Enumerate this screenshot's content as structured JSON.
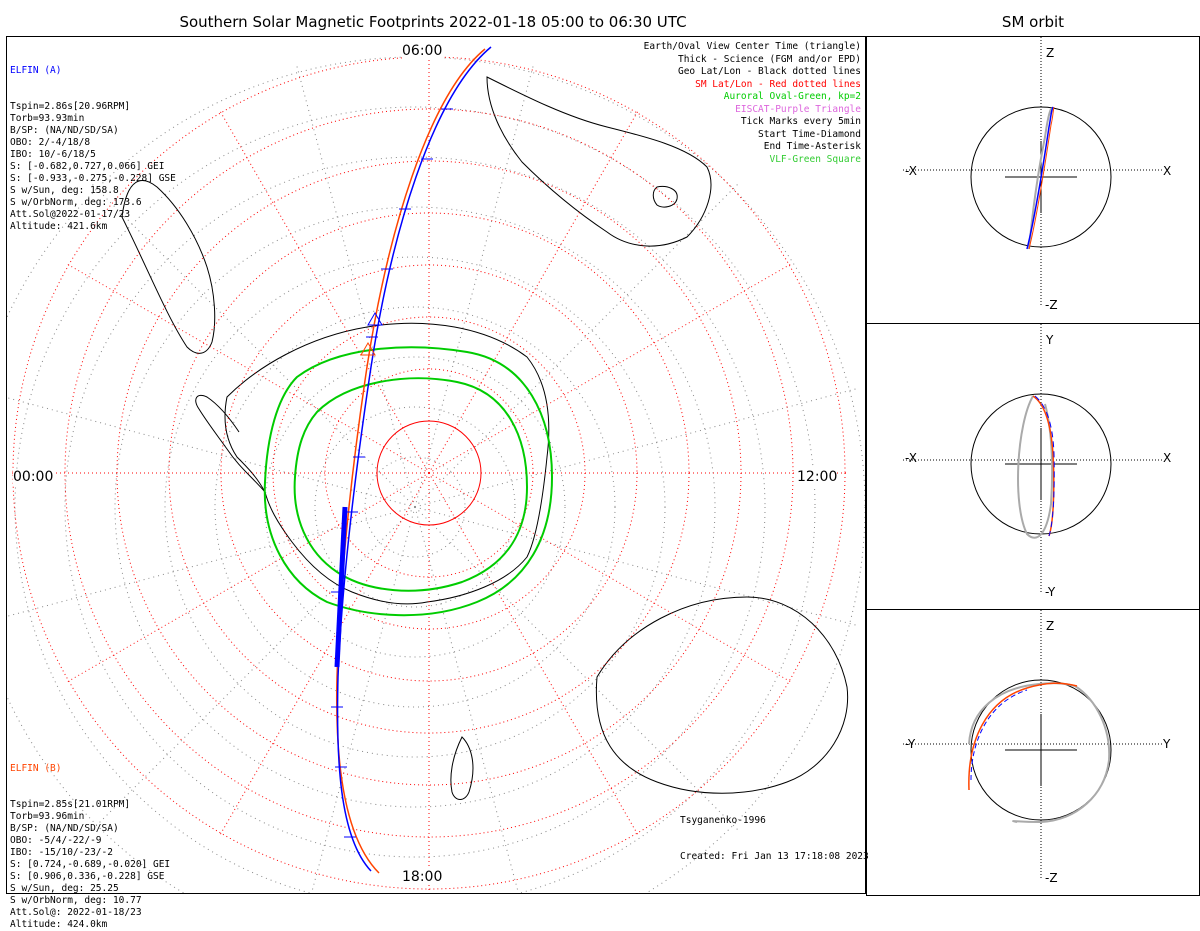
{
  "title": "Southern Solar Magnetic Footprints 2022-01-18 05:00 to 06:30 UTC",
  "orbit_title": "SM orbit",
  "time_labels": {
    "top": "06:00",
    "left": "00:00",
    "right": "12:00",
    "bottom": "18:00"
  },
  "legend": [
    {
      "text": "Earth/Oval View Center Time (triangle)",
      "color": "#000000"
    },
    {
      "text": "Thick - Science (FGM and/or EPD)",
      "color": "#000000"
    },
    {
      "text": "Geo Lat/Lon - Black dotted lines",
      "color": "#000000"
    },
    {
      "text": "SM Lat/Lon - Red dotted lines",
      "color": "#ff0000"
    },
    {
      "text": "Auroral Oval-Green, kp=2",
      "color": "#00cc00"
    },
    {
      "text": "EISCAT-Purple Triangle",
      "color": "#dd66dd"
    },
    {
      "text": "Tick Marks every 5min",
      "color": "#000000"
    },
    {
      "text": "Start Time-Diamond",
      "color": "#000000"
    },
    {
      "text": "End Time-Asterisk",
      "color": "#000000"
    },
    {
      "text": "VLF-Green Square",
      "color": "#33cc33"
    }
  ],
  "elfin_a": {
    "name": "ELFIN (A)",
    "color": "#0000ff",
    "lines": [
      "Tspin=2.86s[20.96RPM]",
      "Torb=93.93min",
      "B/SP: (NA/ND/SD/SA)",
      "OBO: 2/-4/18/8",
      "IBO: 10/-6/18/5",
      "S: [-0.682,0.727,0.066] GEI",
      "S: [-0.933,-0.275,-0.228] GSE",
      "S w/Sun, deg: 158.8",
      "S w/OrbNorm, deg: 173.6",
      "Att.Sol@2022-01-17/23",
      "Altitude: 421.6km"
    ]
  },
  "elfin_b": {
    "name": "ELFIN (B)",
    "color": "#ff4400",
    "lines": [
      "Tspin=2.85s[21.01RPM]",
      "Torb=93.96min",
      "B/SP: (NA/ND/SD/SA)",
      "OBO: -5/4/-22/-9",
      "IBO: -15/10/-23/-2",
      "S: [0.724,-0.689,-0.020] GEI",
      "S: [0.906,0.336,-0.228] GSE",
      "S w/Sun, deg: 25.25",
      "S w/OrbNorm, deg: 10.77",
      "Att.Sol@: 2022-01-18/23",
      "Altitude: 424.0km"
    ]
  },
  "credits": [
    "Tsyganenko-1996",
    "Created: Fri Jan 13 17:18:08 2023"
  ],
  "orbit_panels": [
    {
      "name": "xz",
      "top": "Z",
      "bottom": "-Z",
      "left": "-X",
      "right": "X"
    },
    {
      "name": "xy",
      "top": "Y",
      "bottom": "-Y",
      "left": "-X",
      "right": "X"
    },
    {
      "name": "yz",
      "top": "Z",
      "bottom": "-Z",
      "left": "-Y",
      "right": "Y"
    }
  ],
  "chart_data": {
    "type": "polar-map",
    "projection": "south polar",
    "mlt_positions": {
      "top": "06:00",
      "left": "00:00",
      "right": "12:00",
      "bottom": "18:00"
    },
    "colors": {
      "elfin_a": "#0000ff",
      "elfin_b": "#ff4400",
      "auroral_oval": "#00cc00",
      "sm_grid": "#ff0000",
      "geo_grid": "#000000"
    },
    "series": [
      {
        "name": "ELFIN (A)",
        "color": "#0000ff"
      },
      {
        "name": "ELFIN (B)",
        "color": "#ff4400"
      }
    ]
  }
}
